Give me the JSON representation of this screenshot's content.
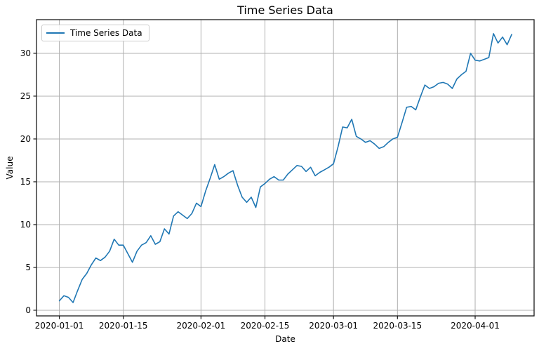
{
  "chart_data": {
    "type": "line",
    "title": "Time Series Data",
    "xlabel": "Date",
    "ylabel": "Value",
    "grid": true,
    "grid_color": "#b0b0b0",
    "legend": {
      "label": "Time Series Data",
      "position": "upper-left"
    },
    "x_tick_labels": [
      "2020-01-01",
      "2020-01-15",
      "2020-02-01",
      "2020-02-15",
      "2020-03-01",
      "2020-03-15",
      "2020-04-01"
    ],
    "x_tick_day_index": [
      0,
      14,
      31,
      45,
      60,
      74,
      91
    ],
    "y_ticks": [
      0,
      5,
      10,
      15,
      20,
      25,
      30
    ],
    "y_tick_labels": [
      "0",
      "5",
      "10",
      "15",
      "20",
      "25",
      "30"
    ],
    "x_range_day_index": [
      -5.0,
      103.9
    ],
    "y_range": [
      -0.66,
      33.93
    ],
    "series": [
      {
        "name": "Time Series Data",
        "color": "#1f77b4",
        "start_date": "2020-01-01",
        "end_date": "2020-04-09",
        "frequency": "daily",
        "num_points": 100,
        "values": [
          1.1,
          1.7,
          1.5,
          0.9,
          2.3,
          3.6,
          4.3,
          5.3,
          6.1,
          5.8,
          6.2,
          6.9,
          8.3,
          7.6,
          7.6,
          6.6,
          5.6,
          6.9,
          7.6,
          7.9,
          8.7,
          7.7,
          8.0,
          9.5,
          8.9,
          11.0,
          11.5,
          11.1,
          10.7,
          11.3,
          12.5,
          12.1,
          13.9,
          15.4,
          17.0,
          15.3,
          15.6,
          16.0,
          16.3,
          14.6,
          13.2,
          12.6,
          13.2,
          12.0,
          14.4,
          14.8,
          15.3,
          15.6,
          15.2,
          15.2,
          15.9,
          16.4,
          16.9,
          16.8,
          16.2,
          16.7,
          15.7,
          16.1,
          16.4,
          16.7,
          17.1,
          19.1,
          21.4,
          21.3,
          22.3,
          20.3,
          20.0,
          19.6,
          19.8,
          19.4,
          18.9,
          19.1,
          19.6,
          20.0,
          20.2,
          21.9,
          23.7,
          23.8,
          23.4,
          24.9,
          26.3,
          25.9,
          26.1,
          26.5,
          26.6,
          26.4,
          25.9,
          27.0,
          27.5,
          27.9,
          30.0,
          29.2,
          29.1,
          29.3,
          29.5,
          32.3,
          31.2,
          31.9,
          31.0,
          32.2
        ]
      }
    ]
  }
}
